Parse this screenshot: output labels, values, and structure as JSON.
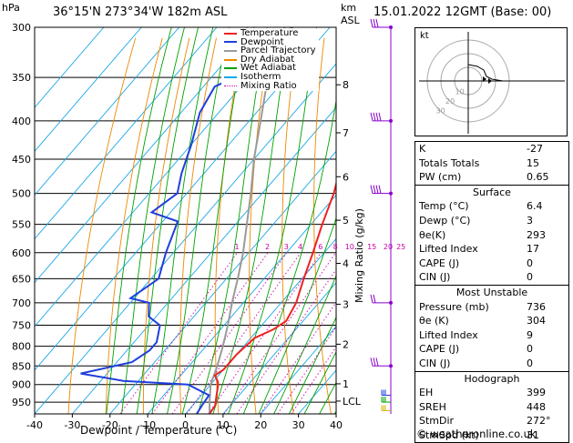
{
  "header": {
    "hpa_unit": "hPa",
    "location": "36°15'N  273°34'W  182m  ASL",
    "km_unit": "km",
    "asl_unit": "ASL",
    "datetime": "15.01.2022  12GMT  (Base: 00)"
  },
  "chart_data": {
    "type": "skew-t",
    "xlabel": "Dewpoint / Temperature (°C)",
    "mixing_ratio_label": "Mixing Ratio (g/kg)",
    "x_ticks": [
      -40,
      -30,
      -20,
      -10,
      0,
      10,
      20,
      30,
      40
    ],
    "pressure_ticks": [
      300,
      350,
      400,
      450,
      500,
      550,
      600,
      650,
      700,
      750,
      800,
      850,
      900,
      950
    ],
    "km_ticks": [
      {
        "label": "8",
        "p": 358
      },
      {
        "label": "7",
        "p": 415
      },
      {
        "label": "6",
        "p": 475
      },
      {
        "label": "5",
        "p": 543
      },
      {
        "label": "4",
        "p": 620
      },
      {
        "label": "3",
        "p": 703
      },
      {
        "label": "2",
        "p": 795
      },
      {
        "label": "1",
        "p": 898
      },
      {
        "label": "LCL",
        "p": 947
      }
    ],
    "mixing_ratio_values": [
      "1",
      "2",
      "3",
      "4",
      "6",
      "8",
      "10",
      "15",
      "20",
      "25"
    ],
    "legend": [
      "Temperature",
      "Dewpoint",
      "Parcel Trajectory",
      "Dry Adiabat",
      "Wet Adiabat",
      "Isotherm",
      "Mixing Ratio"
    ],
    "temperature": [
      [
        300,
        -38
      ],
      [
        330,
        -32.5
      ],
      [
        360,
        -27
      ],
      [
        400,
        -23
      ],
      [
        450,
        -16.5
      ],
      [
        500,
        -11
      ],
      [
        550,
        -7
      ],
      [
        600,
        -3
      ],
      [
        650,
        0.5
      ],
      [
        700,
        4
      ],
      [
        740,
        5.5
      ],
      [
        760,
        4
      ],
      [
        780,
        1
      ],
      [
        820,
        0
      ],
      [
        860,
        0
      ],
      [
        875,
        -1
      ],
      [
        890,
        1
      ],
      [
        900,
        2
      ],
      [
        930,
        4
      ],
      [
        960,
        6
      ],
      [
        985,
        6.4
      ]
    ],
    "dewpoint": [
      [
        300,
        -60
      ],
      [
        330,
        -57
      ],
      [
        360,
        -67
      ],
      [
        390,
        -65
      ],
      [
        430,
        -60
      ],
      [
        470,
        -56
      ],
      [
        500,
        -52.5
      ],
      [
        530,
        -55
      ],
      [
        545,
        -46
      ],
      [
        600,
        -42
      ],
      [
        650,
        -38
      ],
      [
        690,
        -41
      ],
      [
        700,
        -35
      ],
      [
        730,
        -32
      ],
      [
        750,
        -27
      ],
      [
        790,
        -24
      ],
      [
        810,
        -24
      ],
      [
        840,
        -26
      ],
      [
        870,
        -37
      ],
      [
        890,
        -24
      ],
      [
        900,
        -6
      ],
      [
        930,
        2
      ],
      [
        960,
        2.5
      ],
      [
        985,
        3
      ]
    ],
    "parcel": [
      [
        985,
        6.4
      ],
      [
        947,
        3.5
      ],
      [
        900,
        0
      ],
      [
        850,
        -2.5
      ],
      [
        800,
        -5.5
      ],
      [
        750,
        -9
      ],
      [
        700,
        -13
      ],
      [
        650,
        -17
      ],
      [
        600,
        -21.5
      ],
      [
        550,
        -27
      ],
      [
        500,
        -33
      ],
      [
        450,
        -40
      ],
      [
        400,
        -47
      ],
      [
        350,
        -55
      ],
      [
        300,
        -62
      ]
    ],
    "colors": {
      "temperature": "#ee2222",
      "dewpoint": "#1f3fdd",
      "parcel": "#9a9a9a",
      "dry_adiabat": "#ee8800",
      "wet_adiabat": "#00a000",
      "isotherm": "#19a8e8",
      "mixing_ratio": "#cc00aa",
      "barb": "#8800cc",
      "barb_low": "#d4b000"
    }
  },
  "hodograph": {
    "unit_label": "kt",
    "ring_labels": [
      "10",
      "20",
      "30"
    ]
  },
  "indices": {
    "rows": [
      {
        "label": "K",
        "value": "-27"
      },
      {
        "label": "Totals Totals",
        "value": "15"
      },
      {
        "label": "PW (cm)",
        "value": "0.65"
      }
    ]
  },
  "surface": {
    "title": "Surface",
    "temp_label": "Temp (°C)",
    "temp": "6.4",
    "dewp_label": "Dewp (°C)",
    "dewp": "3",
    "theta_label": "θe(K)",
    "theta": "293",
    "li_label": "Lifted Index",
    "li": "17",
    "cape_label": "CAPE (J)",
    "cape": "0",
    "cin_label": "CIN (J)",
    "cin": "0"
  },
  "most_unstable": {
    "title": "Most Unstable",
    "pressure_label": "Pressure (mb)",
    "pressure": "736",
    "theta_label": "θe (K)",
    "theta": "304",
    "li_label": "Lifted Index",
    "li": "9",
    "cape_label": "CAPE (J)",
    "cape": "0",
    "cin_label": "CIN (J)",
    "cin": "0"
  },
  "hodo_table": {
    "title": "Hodograph",
    "eh_label": "EH",
    "eh": "399",
    "sreh_label": "SREH",
    "sreh": "448",
    "stmdir_label": "StmDir",
    "stmdir": "272°",
    "stmspd_label": "StmSpd (kt)",
    "stmspd": "31"
  },
  "footer": {
    "copyright": "© weatheronline.co.uk"
  }
}
